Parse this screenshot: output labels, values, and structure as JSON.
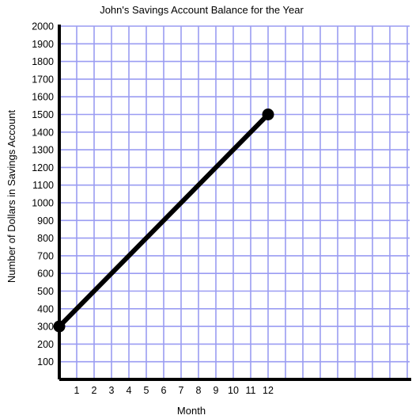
{
  "chart_data": {
    "type": "line",
    "title": "John's Savings Account Balance for the Year",
    "xlabel": "Month",
    "ylabel": "Number of Dollars in Savings Account",
    "x_ticks": [
      "1",
      "2",
      "3",
      "4",
      "5",
      "6",
      "7",
      "8",
      "9",
      "10",
      "11",
      "12"
    ],
    "y_ticks": [
      "100",
      "200",
      "300",
      "400",
      "500",
      "600",
      "700",
      "800",
      "900",
      "1000",
      "1100",
      "1200",
      "1300",
      "1400",
      "1500",
      "1600",
      "1700",
      "1800",
      "1900",
      "2000"
    ],
    "xlim": [
      0,
      20
    ],
    "ylim": [
      0,
      2000
    ],
    "grid": true,
    "series": [
      {
        "x": [
          0,
          12
        ],
        "y": [
          300,
          1500
        ]
      }
    ],
    "colors": {
      "grid": "#9a9cf2",
      "axis": "#000000",
      "line": "#000000",
      "background": "#ffffff"
    }
  }
}
